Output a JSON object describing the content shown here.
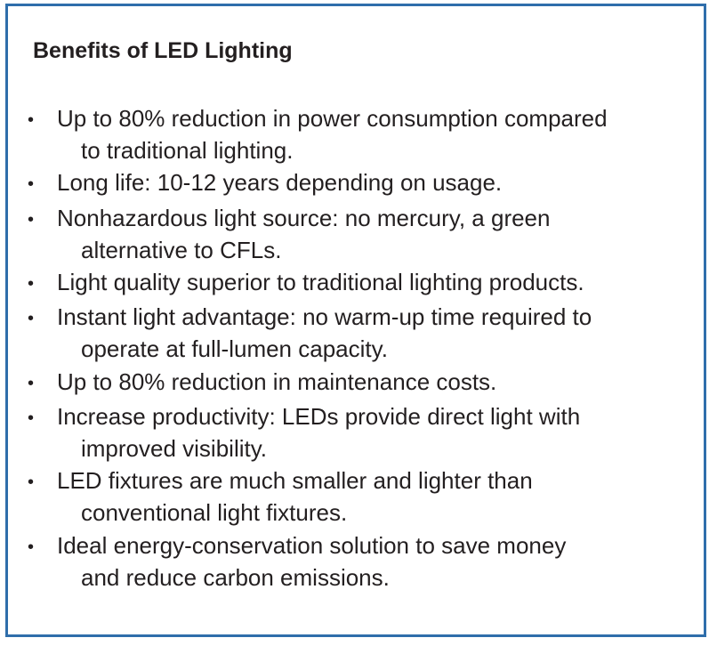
{
  "panel": {
    "title": "Benefits of LED Lighting",
    "border_color": "#2f6eab",
    "bullets": [
      {
        "lines": [
          "Up to 80% reduction in power consumption compared",
          "to traditional lighting."
        ]
      },
      {
        "lines": [
          "Long life: 10-12 years depending on usage."
        ]
      },
      {
        "lines": [
          "Nonhazardous light source: no mercury, a green",
          "alternative to CFLs."
        ]
      },
      {
        "lines": [
          "Light quality superior to traditional lighting products."
        ]
      },
      {
        "lines": [
          "Instant light advantage: no warm-up time required to",
          "operate at full-lumen capacity."
        ]
      },
      {
        "lines": [
          "Up to 80% reduction in maintenance costs."
        ]
      },
      {
        "lines": [
          "Increase productivity: LEDs provide direct light with",
          "improved visibility."
        ]
      },
      {
        "lines": [
          "LED fixtures are much smaller and lighter than",
          "conventional light fixtures."
        ]
      },
      {
        "lines": [
          "Ideal energy-conservation solution to save money",
          "and reduce carbon emissions."
        ]
      }
    ]
  }
}
